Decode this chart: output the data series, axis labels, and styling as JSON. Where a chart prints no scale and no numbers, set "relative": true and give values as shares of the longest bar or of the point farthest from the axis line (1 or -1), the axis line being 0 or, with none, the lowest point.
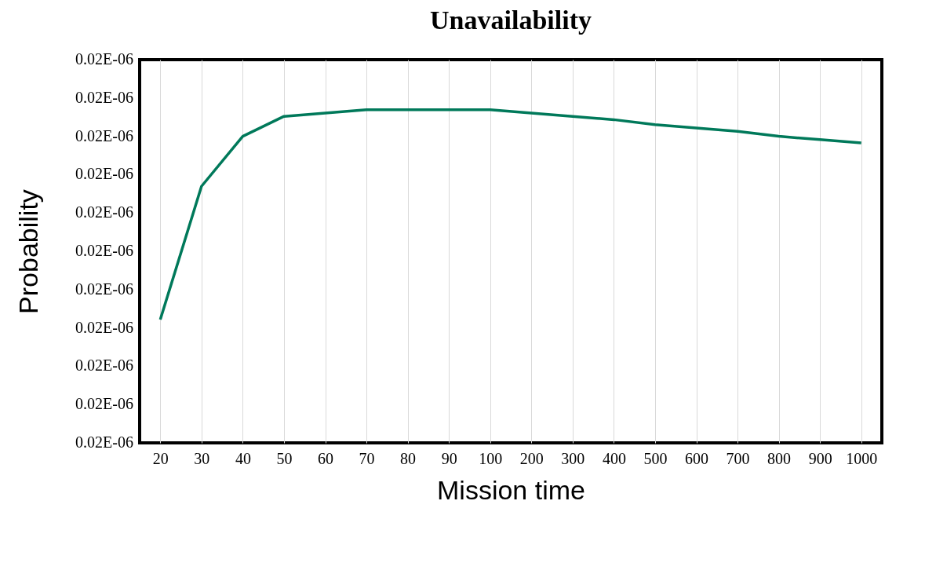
{
  "chart_data": {
    "type": "line",
    "title": "Unavailability",
    "xlabel": "Mission time",
    "ylabel": "Probability",
    "categories": [
      "20",
      "30",
      "40",
      "50",
      "60",
      "70",
      "80",
      "90",
      "100",
      "200",
      "300",
      "400",
      "500",
      "600",
      "700",
      "800",
      "900",
      "1000"
    ],
    "relative": true,
    "series": [
      {
        "color": "#00795a",
        "values": [
          0.37,
          0.77,
          0.92,
          0.98,
          0.99,
          1,
          1,
          1,
          1,
          0.99,
          0.98,
          0.97,
          0.955,
          0.945,
          0.935,
          0.92,
          0.91,
          0.9
        ]
      }
    ],
    "annotations": [
      "0.02E-06",
      "0.02E-06",
      "0.02E-06",
      "0.02E-06",
      "0.02E-06",
      "0.02E-06",
      "0.02E-06",
      "0.02E-06",
      "0.02E-06",
      "0.02E-06",
      "0.02E-06"
    ],
    "grid": "x",
    "marker": "none",
    "line_style": "solid",
    "legend": false
  }
}
